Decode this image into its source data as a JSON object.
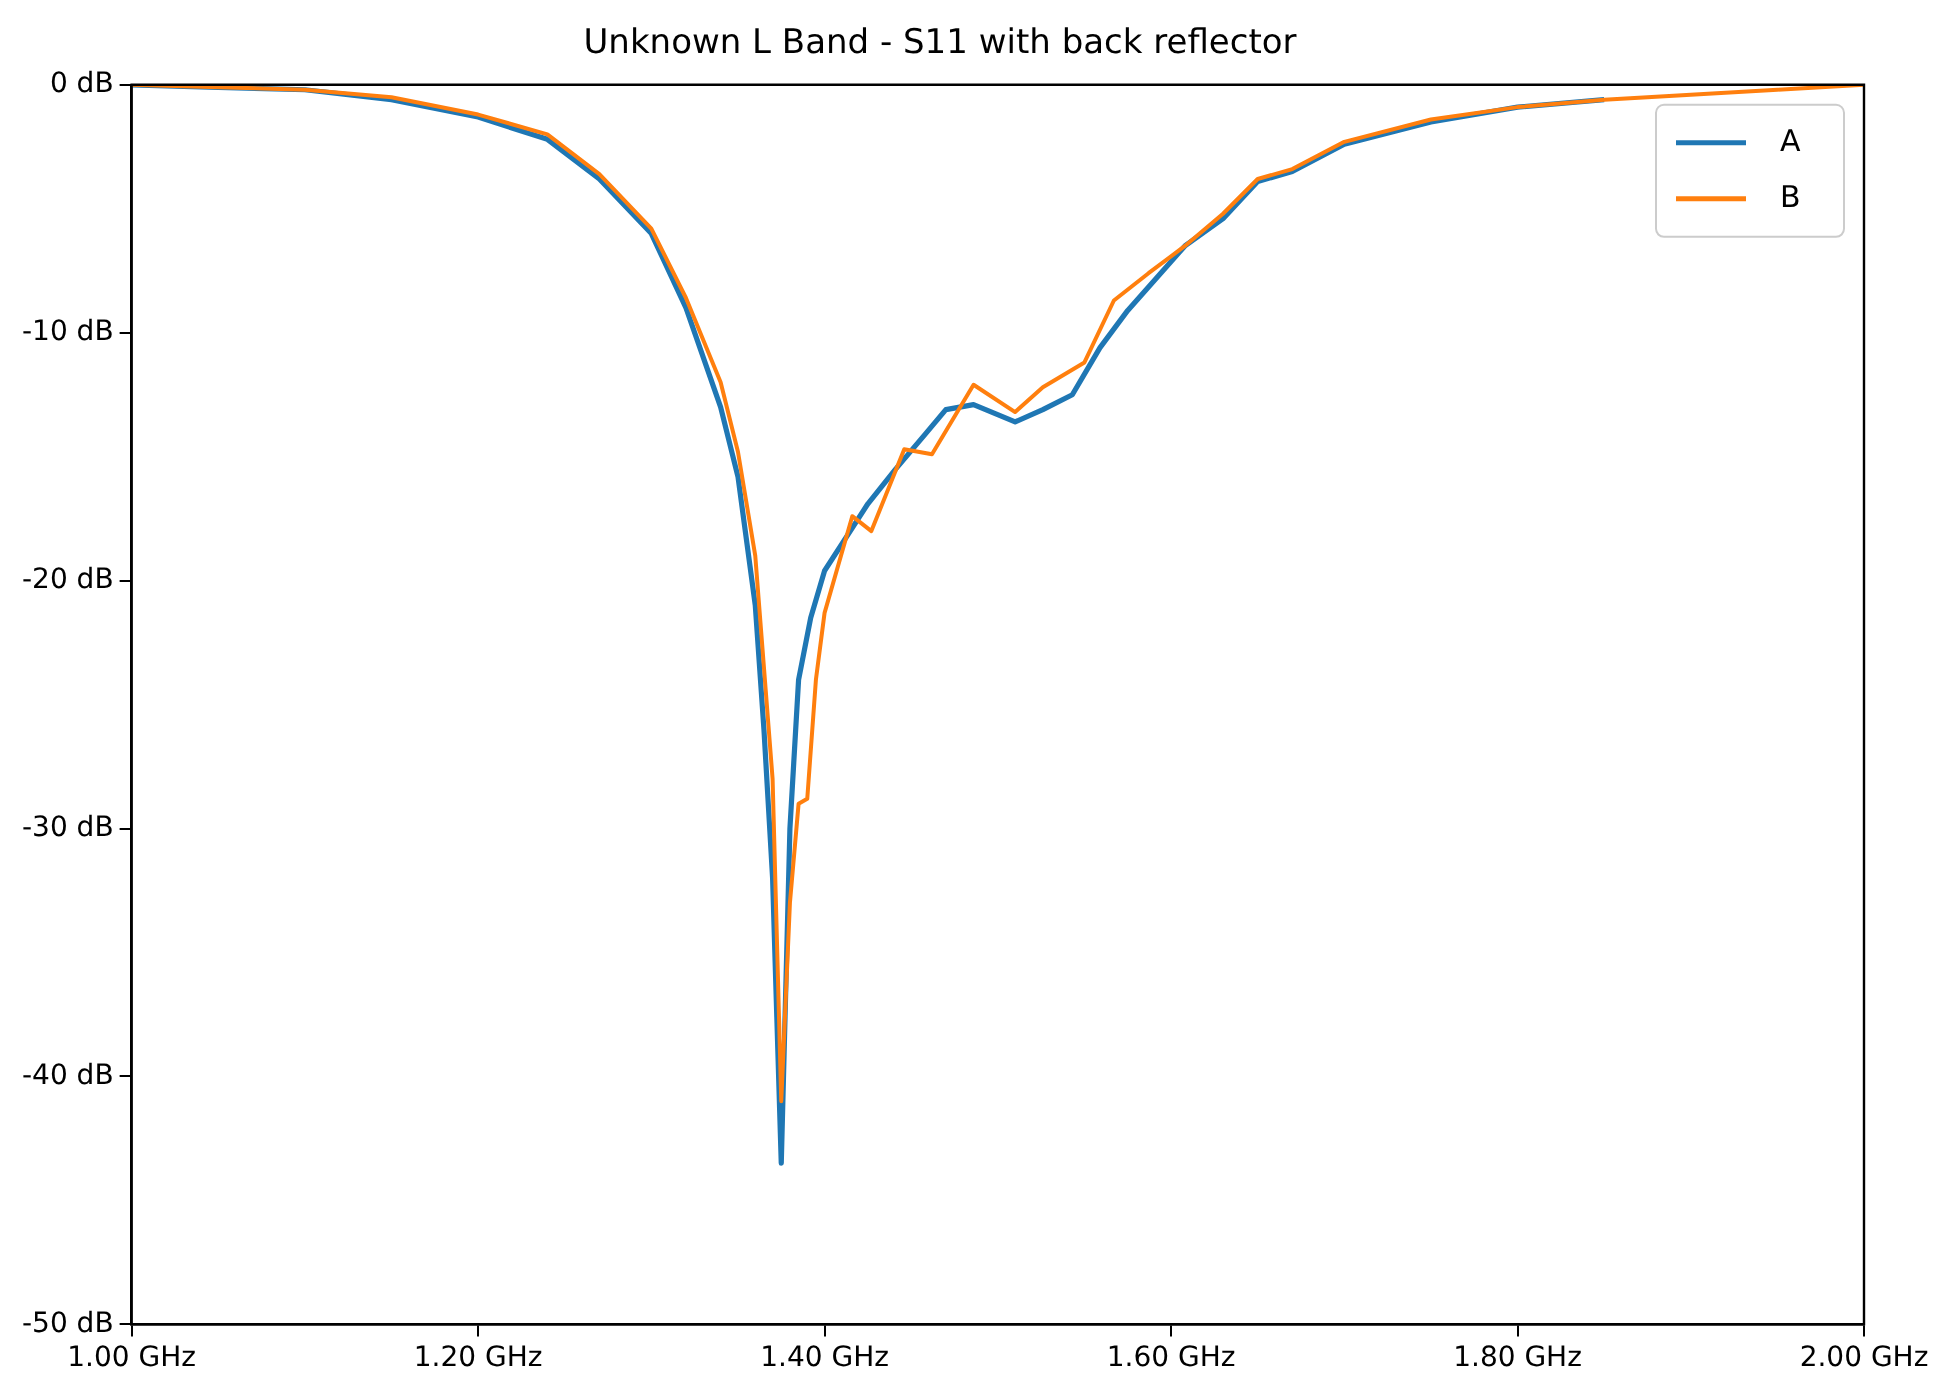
{
  "chart_data": {
    "type": "line",
    "title": "Unknown L Band - S11 with back reflector",
    "xlim": [
      1.0,
      2.0
    ],
    "xticks": [
      {
        "value": 1.0,
        "label": "1.00 GHz"
      },
      {
        "value": 1.2,
        "label": "1.20 GHz"
      },
      {
        "value": 1.4,
        "label": "1.40 GHz"
      },
      {
        "value": 1.6,
        "label": "1.60 GHz"
      },
      {
        "value": 1.8,
        "label": "1.80 GHz"
      },
      {
        "value": 2.0,
        "label": "2.00 GHz"
      }
    ],
    "ylim": [
      -50,
      0
    ],
    "yticks": [
      {
        "value": -50,
        "label": "-50 dB"
      },
      {
        "value": -40,
        "label": "-40 dB"
      },
      {
        "value": -30,
        "label": "-30 dB"
      },
      {
        "value": -20,
        "label": "-20 dB"
      },
      {
        "value": -10,
        "label": "-10 dB"
      },
      {
        "value": 0,
        "label": "0 dB"
      }
    ],
    "grid": false,
    "legend": "top right",
    "series": [
      {
        "name": "A",
        "color": "#1f77b4",
        "x": [
          1.0,
          1.05,
          1.1,
          1.15,
          1.2,
          1.24,
          1.27,
          1.3,
          1.32,
          1.34,
          1.35,
          1.36,
          1.365,
          1.37,
          1.375,
          1.38,
          1.385,
          1.392,
          1.4,
          1.425,
          1.441,
          1.458,
          1.47,
          1.486,
          1.51,
          1.526,
          1.543,
          1.559,
          1.575,
          1.608,
          1.63,
          1.65,
          1.67,
          1.7,
          1.75,
          1.8,
          1.85
        ],
        "values": [
          0,
          -0.1,
          -0.2,
          -0.6,
          -1.3,
          -2.2,
          -3.8,
          -6.0,
          -9.0,
          -13.0,
          -15.8,
          -21,
          -26,
          -32,
          -43.5,
          -30,
          -24,
          -21.5,
          -19.6,
          -16.9,
          -15.5,
          -14.1,
          -13.1,
          -12.9,
          -13.6,
          -13.1,
          -12.5,
          -10.6,
          -9.1,
          -6.5,
          -5.4,
          -3.9,
          -3.5,
          -2.4,
          -1.5,
          -0.9,
          -0.6
        ]
      },
      {
        "name": "B",
        "color": "#ff7f0e",
        "x": [
          1.0,
          1.05,
          1.1,
          1.15,
          1.2,
          1.24,
          1.27,
          1.3,
          1.32,
          1.34,
          1.35,
          1.36,
          1.37,
          1.375,
          1.38,
          1.385,
          1.39,
          1.395,
          1.4,
          1.416,
          1.427,
          1.446,
          1.462,
          1.486,
          1.51,
          1.526,
          1.55,
          1.567,
          1.587,
          1.608,
          1.63,
          1.65,
          1.67,
          1.7,
          1.75,
          1.8,
          1.85,
          1.9,
          1.95,
          2.0
        ],
        "values": [
          0,
          -0.1,
          -0.2,
          -0.5,
          -1.2,
          -2.0,
          -3.6,
          -5.8,
          -8.6,
          -12.0,
          -14.8,
          -19,
          -28,
          -41,
          -33,
          -29,
          -28.8,
          -24,
          -21.3,
          -17.4,
          -18.0,
          -14.7,
          -14.9,
          -12.1,
          -13.2,
          -12.2,
          -11.2,
          -8.7,
          -7.6,
          -6.5,
          -5.2,
          -3.8,
          -3.4,
          -2.3,
          -1.4,
          -0.9,
          -0.6,
          -0.4,
          -0.2,
          0
        ]
      }
    ]
  }
}
